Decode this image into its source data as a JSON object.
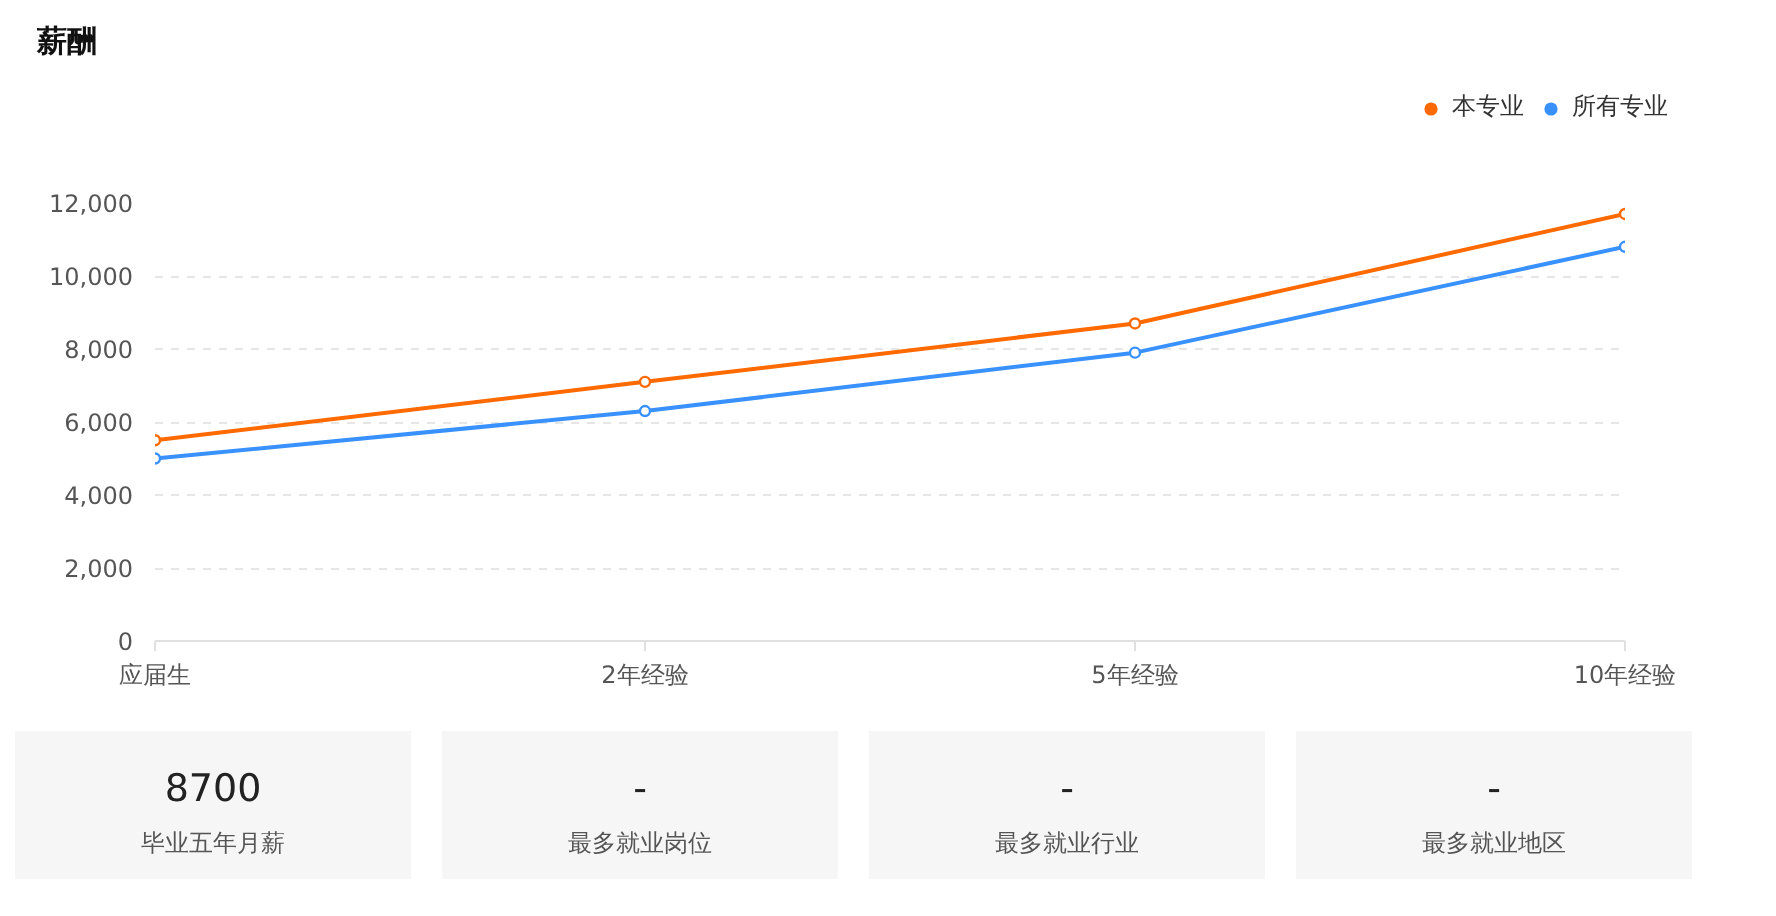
{
  "chart_data": [
    {
      "type": "line",
      "title": "薪酬",
      "categories": [
        "应届生",
        "2年经验",
        "5年经验",
        "10年经验"
      ],
      "series": [
        {
          "name": "本专业",
          "color": "#ff6a00",
          "values": [
            5500,
            7100,
            8700,
            11700
          ]
        },
        {
          "name": "所有专业",
          "color": "#3891ff",
          "values": [
            5000,
            6300,
            7900,
            10800
          ]
        }
      ],
      "ylim": [
        0,
        12000
      ],
      "yticks": [
        {
          "value": 0,
          "label": "0"
        },
        {
          "value": 2000,
          "label": "2,000"
        },
        {
          "value": 4000,
          "label": "4,000"
        },
        {
          "value": 6000,
          "label": "6,000"
        },
        {
          "value": 8000,
          "label": "8,000"
        },
        {
          "value": 10000,
          "label": "10,000"
        },
        {
          "value": 12000,
          "label": "12,000"
        }
      ],
      "grid": "y",
      "legend": "top right",
      "marker": "circle",
      "line_style": "solid"
    },
    {
      "type": "other",
      "annotations": [
        "8700",
        "毕业五年月薪",
        "-",
        "最多就业岗位",
        "-",
        "最多就业行业",
        "-",
        "最多就业地区"
      ]
    }
  ]
}
